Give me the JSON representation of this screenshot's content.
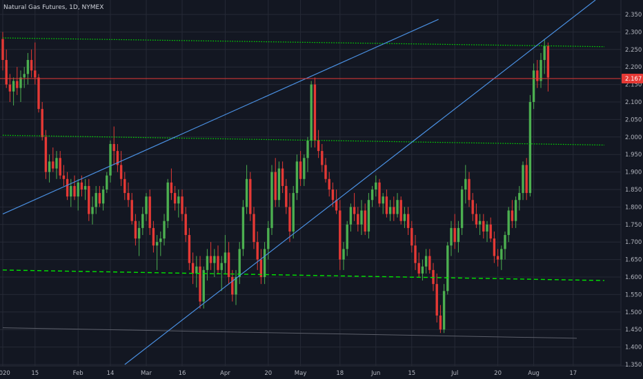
{
  "header": {
    "title": "Natural Gas Futures, 1D, NYMEX"
  },
  "colors": {
    "background": "#131722",
    "grid": "#262a36",
    "up": "#4caf50",
    "down": "#e53935",
    "trendline": "#4a90e2",
    "support": "#00e600",
    "price_line": "#e53935",
    "axis_text": "#b2b5be"
  },
  "chart_data": {
    "type": "candlestick",
    "title": "Natural Gas Futures, 1D, NYMEX",
    "xlabel": "",
    "ylabel": "",
    "ylim": [
      1.35,
      2.37
    ],
    "grid": true,
    "y_ticks": [
      "2.350",
      "2.300",
      "2.250",
      "2.200",
      "2.150",
      "2.100",
      "2.050",
      "2.000",
      "1.950",
      "1.900",
      "1.850",
      "1.800",
      "1.750",
      "1.700",
      "1.650",
      "1.600",
      "1.550",
      "1.500",
      "1.450",
      "1.400",
      "1.350"
    ],
    "x_ticks": [
      {
        "label": "2020",
        "index": 0
      },
      {
        "label": "15",
        "index": 9
      },
      {
        "label": "Feb",
        "index": 21
      },
      {
        "label": "14",
        "index": 30
      },
      {
        "label": "Mar",
        "index": 40
      },
      {
        "label": "16",
        "index": 50
      },
      {
        "label": "Apr",
        "index": 62
      },
      {
        "label": "20",
        "index": 74
      },
      {
        "label": "May",
        "index": 83
      },
      {
        "label": "18",
        "index": 94
      },
      {
        "label": "Jun",
        "index": 104
      },
      {
        "label": "15",
        "index": 114
      },
      {
        "label": "Jul",
        "index": 126
      },
      {
        "label": "20",
        "index": 138
      },
      {
        "label": "Aug",
        "index": 148
      },
      {
        "label": "17",
        "index": 159
      }
    ],
    "candles": [
      [
        2.28,
        2.3,
        2.19,
        2.22
      ],
      [
        2.22,
        2.25,
        2.14,
        2.15
      ],
      [
        2.15,
        2.18,
        2.1,
        2.13
      ],
      [
        2.13,
        2.17,
        2.09,
        2.16
      ],
      [
        2.16,
        2.2,
        2.12,
        2.14
      ],
      [
        2.14,
        2.19,
        2.1,
        2.17
      ],
      [
        2.17,
        2.2,
        2.14,
        2.18
      ],
      [
        2.18,
        2.24,
        2.15,
        2.22
      ],
      [
        2.22,
        2.25,
        2.17,
        2.19
      ],
      [
        2.19,
        2.27,
        2.15,
        2.17
      ],
      [
        2.17,
        2.18,
        2.07,
        2.08
      ],
      [
        2.08,
        2.1,
        1.99,
        2.0
      ],
      [
        2.0,
        2.02,
        1.88,
        1.9
      ],
      [
        1.9,
        1.95,
        1.87,
        1.93
      ],
      [
        1.93,
        1.97,
        1.9,
        1.91
      ],
      [
        1.91,
        1.96,
        1.88,
        1.94
      ],
      [
        1.94,
        1.96,
        1.88,
        1.89
      ],
      [
        1.89,
        1.92,
        1.86,
        1.88
      ],
      [
        1.88,
        1.9,
        1.82,
        1.83
      ],
      [
        1.83,
        1.88,
        1.8,
        1.86
      ],
      [
        1.86,
        1.89,
        1.82,
        1.83
      ],
      [
        1.83,
        1.88,
        1.79,
        1.87
      ],
      [
        1.87,
        1.89,
        1.83,
        1.85
      ],
      [
        1.85,
        1.88,
        1.82,
        1.86
      ],
      [
        1.86,
        1.88,
        1.76,
        1.78
      ],
      [
        1.78,
        1.83,
        1.75,
        1.8
      ],
      [
        1.8,
        1.86,
        1.78,
        1.84
      ],
      [
        1.84,
        1.86,
        1.8,
        1.81
      ],
      [
        1.81,
        1.86,
        1.79,
        1.85
      ],
      [
        1.85,
        1.9,
        1.84,
        1.89
      ],
      [
        1.89,
        1.99,
        1.87,
        1.98
      ],
      [
        1.98,
        2.03,
        1.92,
        1.96
      ],
      [
        1.96,
        1.98,
        1.9,
        1.92
      ],
      [
        1.92,
        1.96,
        1.86,
        1.88
      ],
      [
        1.88,
        1.9,
        1.82,
        1.84
      ],
      [
        1.84,
        1.87,
        1.8,
        1.82
      ],
      [
        1.82,
        1.84,
        1.75,
        1.76
      ],
      [
        1.76,
        1.78,
        1.69,
        1.71
      ],
      [
        1.71,
        1.76,
        1.66,
        1.74
      ],
      [
        1.74,
        1.8,
        1.72,
        1.78
      ],
      [
        1.78,
        1.84,
        1.76,
        1.83
      ],
      [
        1.83,
        1.85,
        1.72,
        1.74
      ],
      [
        1.74,
        1.76,
        1.67,
        1.69
      ],
      [
        1.69,
        1.72,
        1.62,
        1.7
      ],
      [
        1.7,
        1.73,
        1.66,
        1.71
      ],
      [
        1.71,
        1.78,
        1.69,
        1.76
      ],
      [
        1.76,
        1.88,
        1.74,
        1.87
      ],
      [
        1.87,
        1.91,
        1.82,
        1.84
      ],
      [
        1.84,
        1.86,
        1.79,
        1.81
      ],
      [
        1.81,
        1.85,
        1.77,
        1.83
      ],
      [
        1.83,
        1.85,
        1.76,
        1.78
      ],
      [
        1.78,
        1.8,
        1.7,
        1.72
      ],
      [
        1.72,
        1.74,
        1.62,
        1.64
      ],
      [
        1.64,
        1.67,
        1.58,
        1.61
      ],
      [
        1.61,
        1.66,
        1.57,
        1.63
      ],
      [
        1.63,
        1.66,
        1.51,
        1.53
      ],
      [
        1.53,
        1.63,
        1.51,
        1.62
      ],
      [
        1.62,
        1.68,
        1.59,
        1.66
      ],
      [
        1.66,
        1.7,
        1.62,
        1.64
      ],
      [
        1.64,
        1.68,
        1.6,
        1.66
      ],
      [
        1.66,
        1.69,
        1.61,
        1.62
      ],
      [
        1.62,
        1.66,
        1.56,
        1.64
      ],
      [
        1.64,
        1.72,
        1.61,
        1.67
      ],
      [
        1.67,
        1.7,
        1.58,
        1.6
      ],
      [
        1.6,
        1.62,
        1.53,
        1.55
      ],
      [
        1.55,
        1.62,
        1.52,
        1.6
      ],
      [
        1.6,
        1.7,
        1.58,
        1.68
      ],
      [
        1.68,
        1.82,
        1.66,
        1.8
      ],
      [
        1.8,
        1.92,
        1.78,
        1.88
      ],
      [
        1.88,
        1.9,
        1.76,
        1.78
      ],
      [
        1.78,
        1.8,
        1.68,
        1.7
      ],
      [
        1.7,
        1.73,
        1.62,
        1.65
      ],
      [
        1.65,
        1.68,
        1.58,
        1.6
      ],
      [
        1.6,
        1.7,
        1.58,
        1.68
      ],
      [
        1.68,
        1.76,
        1.65,
        1.74
      ],
      [
        1.74,
        1.92,
        1.72,
        1.9
      ],
      [
        1.9,
        1.94,
        1.8,
        1.82
      ],
      [
        1.82,
        1.93,
        1.8,
        1.91
      ],
      [
        1.91,
        1.93,
        1.84,
        1.86
      ],
      [
        1.86,
        1.88,
        1.78,
        1.8
      ],
      [
        1.8,
        1.84,
        1.7,
        1.73
      ],
      [
        1.73,
        1.86,
        1.71,
        1.84
      ],
      [
        1.84,
        1.95,
        1.82,
        1.93
      ],
      [
        1.93,
        1.96,
        1.86,
        1.88
      ],
      [
        1.88,
        1.95,
        1.86,
        1.94
      ],
      [
        1.94,
        2.0,
        1.9,
        1.99
      ],
      [
        1.99,
        2.16,
        1.97,
        2.15
      ],
      [
        2.15,
        2.17,
        1.97,
        1.99
      ],
      [
        1.99,
        2.02,
        1.94,
        1.96
      ],
      [
        1.96,
        1.98,
        1.9,
        1.92
      ],
      [
        1.92,
        1.94,
        1.87,
        1.88
      ],
      [
        1.88,
        1.9,
        1.83,
        1.85
      ],
      [
        1.85,
        1.87,
        1.8,
        1.82
      ],
      [
        1.82,
        1.85,
        1.78,
        1.79
      ],
      [
        1.79,
        1.82,
        1.62,
        1.65
      ],
      [
        1.65,
        1.7,
        1.62,
        1.68
      ],
      [
        1.68,
        1.76,
        1.66,
        1.75
      ],
      [
        1.75,
        1.81,
        1.73,
        1.8
      ],
      [
        1.8,
        1.84,
        1.76,
        1.78
      ],
      [
        1.78,
        1.8,
        1.73,
        1.75
      ],
      [
        1.75,
        1.82,
        1.72,
        1.79
      ],
      [
        1.79,
        1.81,
        1.72,
        1.73
      ],
      [
        1.73,
        1.84,
        1.71,
        1.82
      ],
      [
        1.82,
        1.86,
        1.8,
        1.85
      ],
      [
        1.85,
        1.89,
        1.83,
        1.87
      ],
      [
        1.87,
        1.88,
        1.8,
        1.81
      ],
      [
        1.81,
        1.84,
        1.78,
        1.83
      ],
      [
        1.83,
        1.85,
        1.77,
        1.78
      ],
      [
        1.78,
        1.82,
        1.76,
        1.8
      ],
      [
        1.8,
        1.83,
        1.76,
        1.78
      ],
      [
        1.78,
        1.84,
        1.77,
        1.82
      ],
      [
        1.82,
        1.83,
        1.75,
        1.76
      ],
      [
        1.76,
        1.8,
        1.74,
        1.78
      ],
      [
        1.78,
        1.8,
        1.72,
        1.74
      ],
      [
        1.74,
        1.76,
        1.67,
        1.69
      ],
      [
        1.69,
        1.72,
        1.62,
        1.64
      ],
      [
        1.64,
        1.67,
        1.6,
        1.61
      ],
      [
        1.61,
        1.65,
        1.59,
        1.63
      ],
      [
        1.63,
        1.68,
        1.61,
        1.66
      ],
      [
        1.66,
        1.68,
        1.61,
        1.62
      ],
      [
        1.62,
        1.64,
        1.56,
        1.58
      ],
      [
        1.58,
        1.61,
        1.47,
        1.49
      ],
      [
        1.49,
        1.52,
        1.44,
        1.45
      ],
      [
        1.45,
        1.58,
        1.44,
        1.56
      ],
      [
        1.56,
        1.7,
        1.55,
        1.69
      ],
      [
        1.69,
        1.76,
        1.66,
        1.74
      ],
      [
        1.74,
        1.78,
        1.68,
        1.7
      ],
      [
        1.7,
        1.76,
        1.67,
        1.74
      ],
      [
        1.74,
        1.86,
        1.72,
        1.85
      ],
      [
        1.85,
        1.92,
        1.81,
        1.88
      ],
      [
        1.88,
        1.9,
        1.8,
        1.82
      ],
      [
        1.82,
        1.84,
        1.76,
        1.78
      ],
      [
        1.78,
        1.81,
        1.74,
        1.75
      ],
      [
        1.75,
        1.78,
        1.72,
        1.76
      ],
      [
        1.76,
        1.78,
        1.71,
        1.73
      ],
      [
        1.73,
        1.76,
        1.7,
        1.75
      ],
      [
        1.75,
        1.77,
        1.7,
        1.71
      ],
      [
        1.71,
        1.73,
        1.64,
        1.66
      ],
      [
        1.66,
        1.68,
        1.63,
        1.65
      ],
      [
        1.65,
        1.69,
        1.62,
        1.68
      ],
      [
        1.68,
        1.73,
        1.65,
        1.72
      ],
      [
        1.72,
        1.8,
        1.7,
        1.79
      ],
      [
        1.79,
        1.82,
        1.74,
        1.76
      ],
      [
        1.76,
        1.83,
        1.74,
        1.82
      ],
      [
        1.82,
        1.86,
        1.79,
        1.84
      ],
      [
        1.84,
        1.93,
        1.82,
        1.92
      ],
      [
        1.92,
        1.94,
        1.82,
        1.84
      ],
      [
        1.84,
        2.12,
        1.83,
        2.1
      ],
      [
        2.1,
        2.21,
        2.08,
        2.19
      ],
      [
        2.19,
        2.22,
        2.14,
        2.16
      ],
      [
        2.16,
        2.24,
        2.14,
        2.22
      ],
      [
        2.22,
        2.28,
        2.18,
        2.26
      ],
      [
        2.26,
        2.27,
        2.13,
        2.17
      ]
    ],
    "trendlines": [
      {
        "from": [
          0,
          1.78
        ],
        "to": [
          83,
          2.16
        ]
      },
      {
        "from": [
          34,
          1.35
        ],
        "to": [
          160,
          2.35
        ]
      }
    ],
    "support_lines": [
      {
        "from": [
          0,
          2.283
        ],
        "to": [
          160,
          2.258
        ],
        "style": "dotted"
      },
      {
        "from": [
          0,
          2.005
        ],
        "to": [
          160,
          1.977
        ],
        "style": "dotted"
      },
      {
        "from": [
          0,
          1.62
        ],
        "to": [
          160,
          1.59
        ],
        "style": "dashed"
      }
    ],
    "reference_lines": [
      {
        "from": [
          0,
          1.455
        ],
        "to": [
          160,
          1.425
        ],
        "style": "solid"
      }
    ],
    "last_price": {
      "value": 2.167,
      "label": "2.167"
    }
  }
}
